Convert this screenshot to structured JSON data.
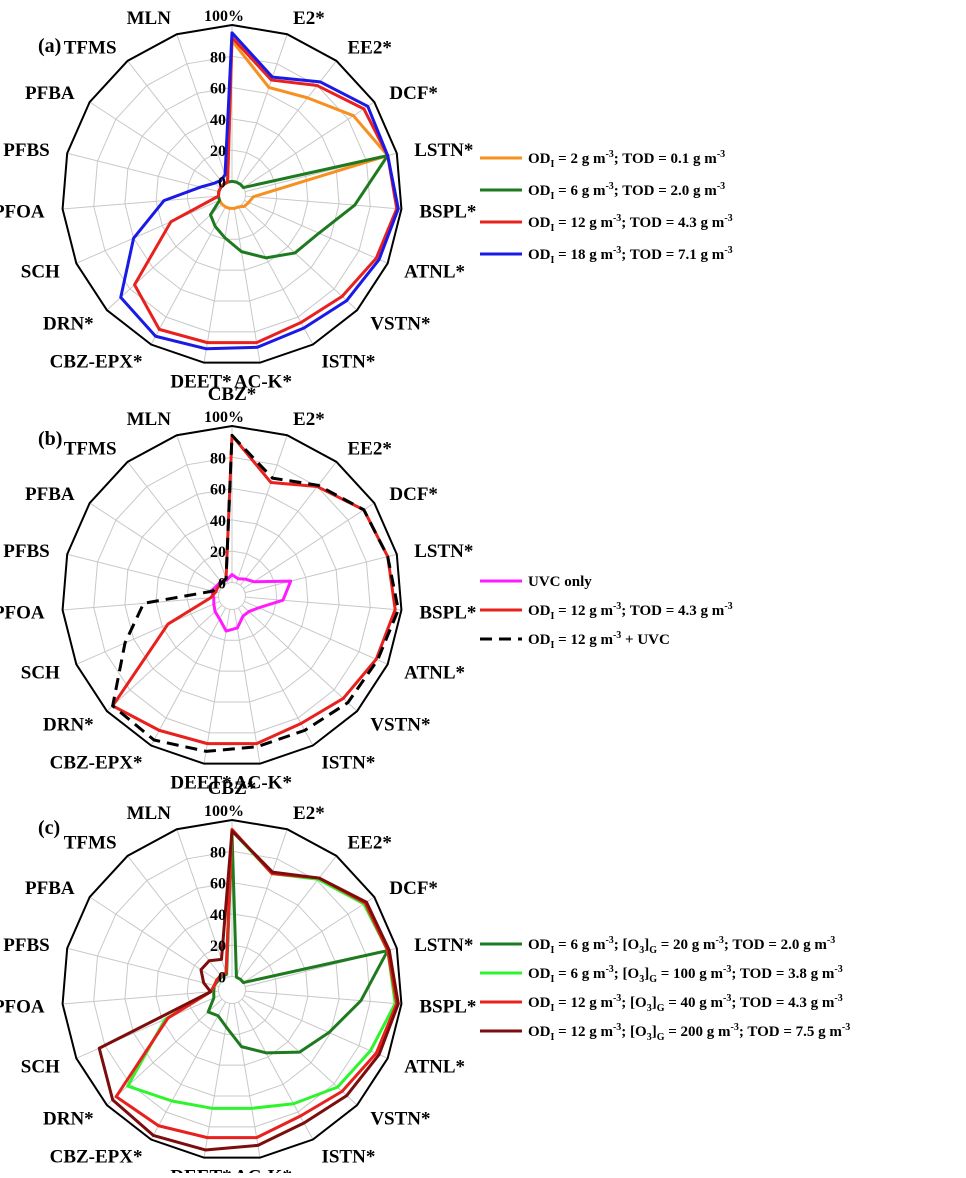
{
  "chart_data": [
    {
      "type": "radar",
      "panel_label": "(a)",
      "categories": [
        "CBZ*",
        "E2*",
        "EE2*",
        "DCF*",
        "LSTN*",
        "BSPL*",
        "ATNL*",
        "VSTN*",
        "ISTN*",
        "AC-K*",
        "DEET*",
        "CBZ-EPX*",
        "DRN*",
        "SCH",
        "PFOA",
        "PFBS",
        "PFBA",
        "TFMS",
        "MLN"
      ],
      "radial_ticks": [
        "0",
        "20",
        "40",
        "60",
        "80",
        "100%"
      ],
      "rlim": [
        0,
        100
      ],
      "grid": true,
      "legend_position": "right",
      "series": [
        {
          "name": "orange",
          "color": "#f7901e",
          "dash": false,
          "legend": {
            "a": "OD",
            "b": "I",
            "c": " = 2 g m",
            "d": "-3",
            "e": "; TOD = 0.1 g m",
            "f": "-3"
          },
          "values": [
            90,
            64,
            70,
            84,
            94,
            5,
            3,
            2,
            0,
            0,
            0,
            0,
            0,
            0,
            0,
            0,
            0,
            0,
            0
          ]
        },
        {
          "name": "green",
          "color": "#1e7a1e",
          "dash": false,
          "legend": {
            "a": "OD",
            "b": "I",
            "c": " = 6 g m",
            "d": "-3",
            "e": "; TOD = 2.0 g m",
            "f": "-3"
          },
          "values": [
            0,
            0,
            0,
            0,
            94,
            70,
            52,
            46,
            37,
            28,
            19,
            14,
            10,
            0,
            0,
            0,
            0,
            0,
            0
          ]
        },
        {
          "name": "red",
          "color": "#e8211e",
          "dash": false,
          "legend": {
            "a": "OD",
            "b": "I",
            "c": " = 12 g m",
            "d": "-3",
            "e": "; TOD = 4.3 g m",
            "f": "-3"
          },
          "values": [
            92,
            69,
            80,
            92,
            94,
            97,
            92,
            87,
            84,
            87,
            87,
            89,
            76,
            34,
            0,
            0,
            0,
            0,
            0
          ]
        },
        {
          "name": "blue",
          "color": "#1a1ae6",
          "dash": false,
          "legend": {
            "a": "OD",
            "b": "I",
            "c": " = 18 g m",
            "d": "-3",
            "e": "; TOD = 7.1 g m",
            "f": "-3"
          },
          "values": [
            95,
            71,
            83,
            95,
            94,
            98,
            94,
            91,
            88,
            90,
            91,
            94,
            88,
            60,
            35,
            12,
            5,
            3,
            5
          ]
        }
      ]
    },
    {
      "type": "radar",
      "panel_label": "(b)",
      "categories": [
        "CBZ*",
        "E2*",
        "EE2*",
        "DCF*",
        "LSTN*",
        "BSPL*",
        "ATNL*",
        "VSTN*",
        "ISTN*",
        "AC-K*",
        "DEET*",
        "CBZ-EPX*",
        "DRN*",
        "SCH",
        "PFOA",
        "PFBS",
        "PFBA",
        "TFMS",
        "MLN"
      ],
      "radial_ticks": [
        "0",
        "20",
        "40",
        "60",
        "80",
        "100%"
      ],
      "rlim": [
        0,
        100
      ],
      "grid": true,
      "legend_position": "right",
      "series": [
        {
          "name": "magenta",
          "color": "#ff1aff",
          "dash": false,
          "legend": {
            "a": "UVC only",
            "b": "",
            "c": "",
            "d": "",
            "e": "",
            "f": ""
          },
          "values": [
            5,
            3,
            5,
            8,
            30,
            24,
            10,
            6,
            6,
            12,
            14,
            8,
            6,
            4,
            3,
            5,
            3,
            3,
            2
          ]
        },
        {
          "name": "red",
          "color": "#e8211e",
          "dash": false,
          "legend": {
            "a": "OD",
            "b": "I",
            "c": " = 12 g m",
            "d": "-3",
            "e": "; TOD = 4.3 g m",
            "f": "-3"
          },
          "values": [
            94,
            68,
            80,
            92,
            94,
            96,
            92,
            88,
            84,
            87,
            87,
            89,
            95,
            36,
            5,
            2,
            2,
            2,
            3
          ]
        },
        {
          "name": "black-dashed",
          "color": "#000000",
          "dash": true,
          "legend": {
            "a": "OD",
            "b": "I",
            "c": " = 12 g m",
            "d": "-3",
            "e": " + UVC",
            "f": ""
          },
          "values": [
            94,
            71,
            81,
            92,
            94,
            98,
            93,
            92,
            89,
            89,
            92,
            96,
            95,
            66,
            48,
            4,
            2,
            2,
            3
          ]
        }
      ]
    },
    {
      "type": "radar",
      "panel_label": "(c)",
      "categories": [
        "CBZ*",
        "E2*",
        "EE2*",
        "DCF*",
        "LSTN*",
        "BSPL*",
        "ATNL*",
        "VSTN*",
        "ISTN*",
        "AC-K*",
        "DEET*",
        "CBZ-EPX*",
        "DRN*",
        "SCH",
        "PFOA",
        "PFBS",
        "PFBA",
        "TFMS",
        "MLN"
      ],
      "radial_ticks": [
        "0",
        "20",
        "40",
        "60",
        "80",
        "100%"
      ],
      "rlim": [
        0,
        100
      ],
      "grid": true,
      "legend_position": "right",
      "series": [
        {
          "name": "darkgreen",
          "color": "#1e7a1e",
          "dash": false,
          "legend": {
            "a": "OD",
            "b": "I",
            "c": " = 6 g m",
            "d": "-3",
            "e": "; [O",
            "f": "3",
            "g": "]",
            "h": "G",
            "i": " = 20 g m",
            "j": "-3",
            "k": "; TOD = 2.0 g m",
            "l": "-3"
          },
          "values": [
            92,
            0,
            0,
            0,
            94,
            74,
            59,
            50,
            37,
            28,
            15,
            10,
            12,
            4,
            3,
            3,
            2,
            2,
            2
          ]
        },
        {
          "name": "lightgreen",
          "color": "#2df52d",
          "dash": false,
          "legend": {
            "a": "OD",
            "b": "I",
            "c": " = 6 g m",
            "d": "-3",
            "e": "; [O",
            "f": "3",
            "g": "]",
            "h": "G",
            "i": " = 100 g m",
            "j": "-3",
            "k": "; TOD = 3.8 g m",
            "l": "-3"
          },
          "values": [
            93,
            70,
            81,
            92,
            94,
            96,
            88,
            83,
            74,
            68,
            68,
            72,
            82,
            38,
            5,
            3,
            3,
            3,
            3
          ]
        },
        {
          "name": "red",
          "color": "#e8211e",
          "dash": false,
          "legend": {
            "a": "OD",
            "b": "I",
            "c": " = 12 g m",
            "d": "-3",
            "e": "; [O",
            "f": "3",
            "g": "]",
            "h": "G",
            "i": " = 40 g m",
            "j": "-3",
            "k": "; TOD = 4.3 g m",
            "l": "-3"
          },
          "values": [
            94,
            70,
            82,
            93,
            94,
            97,
            92,
            87,
            83,
            87,
            87,
            90,
            92,
            36,
            5,
            3,
            3,
            3,
            3
          ]
        },
        {
          "name": "darkred",
          "color": "#7d0c0c",
          "dash": false,
          "legend": {
            "a": "OD",
            "b": "I",
            "c": " = 12 g m",
            "d": "-3",
            "e": "; [O",
            "f": "3",
            "g": "]",
            "h": "G",
            "i": " = 200 g m",
            "j": "-3",
            "k": "; TOD = 7.5 g m",
            "l": "-3"
          },
          "values": [
            93,
            71,
            82,
            94,
            95,
            98,
            94,
            91,
            88,
            92,
            95,
            97,
            95,
            84,
            5,
            10,
            15,
            15,
            12
          ]
        }
      ]
    }
  ]
}
